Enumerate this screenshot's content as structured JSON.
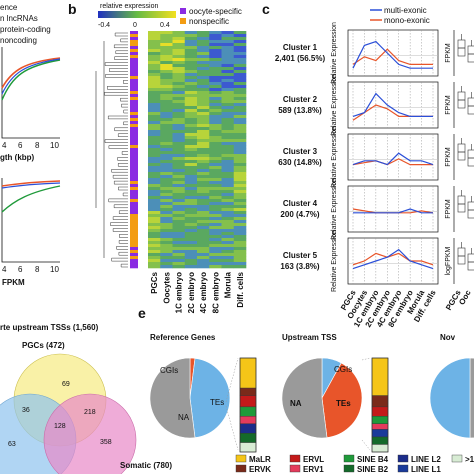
{
  "panel_letters": {
    "b": "b",
    "c": "c",
    "e": "e"
  },
  "panel_a": {
    "legend": [
      "ence",
      "n lncRNAs",
      "protein-coding",
      "noncoding"
    ],
    "xlabel": "gth (kbp)",
    "xticks": [
      "4",
      "6",
      "8",
      "10"
    ],
    "xlabel2": "FPKM",
    "xticks2": [
      "4",
      "6",
      "8",
      "10"
    ]
  },
  "panel_b": {
    "colorbar_title": "relative expression",
    "colorbar_ticks": [
      "-0.4",
      "0",
      "0.4"
    ],
    "legend": [
      {
        "label": "oocyte-specific",
        "color": "#8a2be2"
      },
      {
        "label": "nonspecific",
        "color": "#f39c12"
      }
    ],
    "columns": [
      "PGCs",
      "Oocytes",
      "1C embryo",
      "2C embryo",
      "4C embryo",
      "8C embryo",
      "Morula",
      "Diff. cells"
    ]
  },
  "panel_c": {
    "legend": [
      {
        "label": "multi-exonic",
        "color": "#2b4fd8"
      },
      {
        "label": "mono-exonic",
        "color": "#e8552a"
      }
    ],
    "clusters": [
      {
        "name": "Cluster 1",
        "count": "2,401 (56.5%)",
        "right_ylabel": "FPKM"
      },
      {
        "name": "Cluster 2",
        "count": "589 (13.8%)",
        "right_ylabel": "FPKM"
      },
      {
        "name": "Cluster 3",
        "count": "630 (14.8%)",
        "right_ylabel": "FPKM"
      },
      {
        "name": "Cluster 4",
        "count": "200 (4.7%)",
        "right_ylabel": "FPKM"
      },
      {
        "name": "Cluster 5",
        "count": "163 (3.8%)",
        "right_ylabel": "logFPKM"
      }
    ],
    "ylabel": "Relative Expression",
    "columns": [
      "PGCs",
      "Oocytes",
      "1C embryo",
      "2C embryo",
      "4C embryo",
      "8C embryo",
      "Morula",
      "Diff. cells"
    ],
    "right_columns": [
      "PGCs",
      "Ooc"
    ]
  },
  "panel_d": {
    "title": "rte upstream TSSs (1,560)",
    "sets": [
      {
        "label": "PGCs (472)",
        "color": "#f7ec8a"
      },
      {
        "label": "Somatic (780)",
        "color": "#e889c7"
      },
      {
        "label": "",
        "color": "#8ec3ee"
      }
    ],
    "region_values": [
      "69",
      "36",
      "218",
      "128",
      "63",
      "358"
    ]
  },
  "panel_e": {
    "pies": [
      {
        "title": "Reference Genes",
        "labels": [
          "CGIs",
          "NA",
          "TEs"
        ]
      },
      {
        "title": "Upstream TSS",
        "labels": [
          "CGIs",
          "NA",
          "TEs"
        ]
      },
      {
        "title": "Nov",
        "labels": []
      }
    ],
    "te_legend": [
      {
        "label": "MaLR",
        "color": "#f5c518"
      },
      {
        "label": "ERVL",
        "color": "#c41a1a"
      },
      {
        "label": "SINE B4",
        "color": "#1f9a3a"
      },
      {
        "label": "LINE L2",
        "color": "#1c2c8a"
      },
      {
        "label": ">1",
        "color": "#d8ecd4"
      },
      {
        "label": "ERVK",
        "color": "#7a2a1a"
      },
      {
        "label": "ERV1",
        "color": "#e43b5c"
      },
      {
        "label": "SINE B2",
        "color": "#146a2a"
      },
      {
        "label": "LINE L1",
        "color": "#1a3a9a"
      }
    ]
  }
}
